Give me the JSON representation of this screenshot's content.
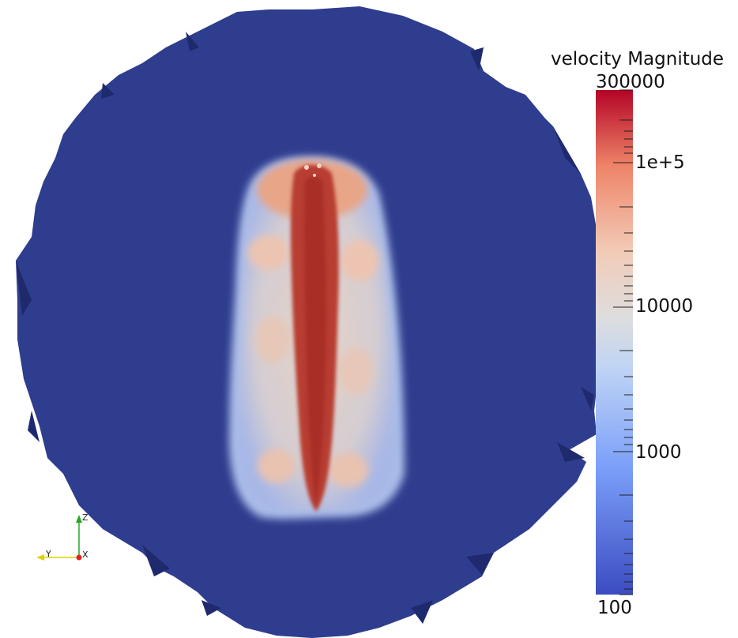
{
  "scene": {
    "background_color": "#ffffff",
    "domain_color": "#2f3d8e",
    "core_color": "#b5392f"
  },
  "legend": {
    "title": "velocity Magnitude",
    "scale": "log",
    "max_label": "300000",
    "min_label": "100",
    "tick_labels": [
      "1e+5",
      "10000",
      "1000"
    ],
    "colormap": [
      "#3b4cc0",
      "#7b9ff9",
      "#c0d4f5",
      "#dddddd",
      "#f2cbb7",
      "#ee8468",
      "#b40426"
    ]
  },
  "orientation_axes": {
    "z_label": "Z",
    "y_label": "Y",
    "x_label": "X"
  }
}
